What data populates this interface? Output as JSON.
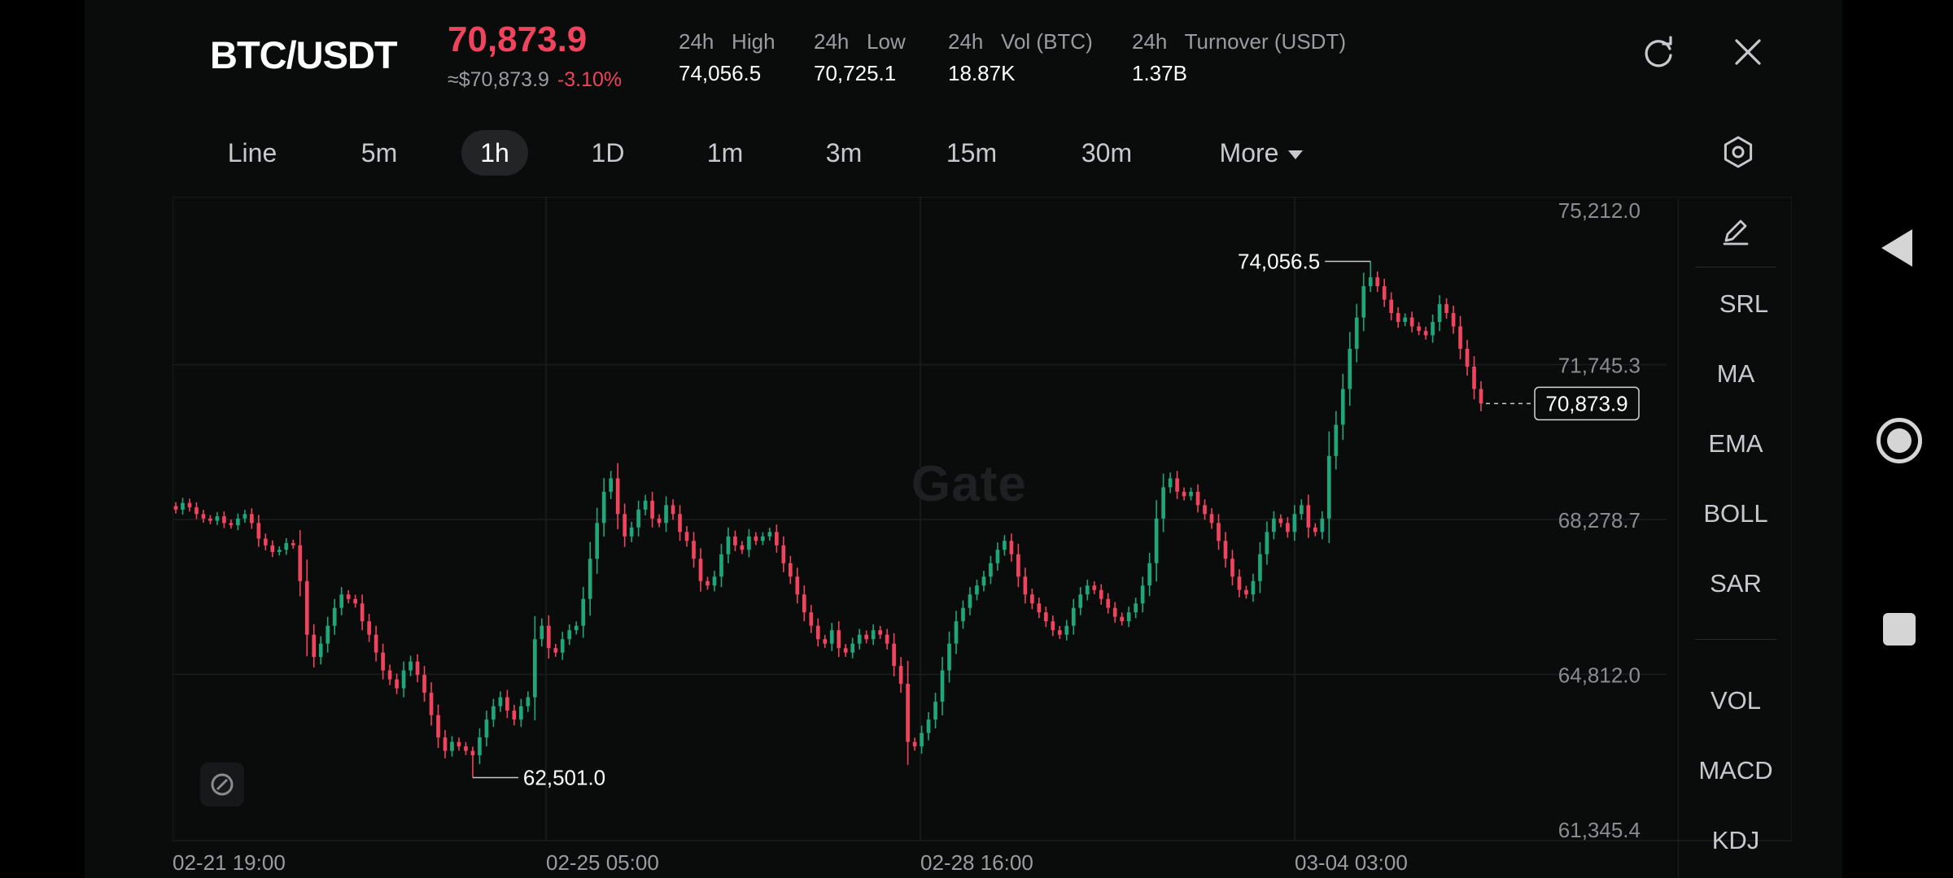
{
  "header": {
    "pair": "BTC/USDT",
    "last_price": "70,873.9",
    "fiat_price": "≈$70,873.9",
    "change": "-3.10%",
    "stats": [
      {
        "label": "24h   High",
        "value": "74,056.5"
      },
      {
        "label": "24h   Low",
        "value": "70,725.1"
      },
      {
        "label": "24h   Vol (BTC)",
        "value": "18.87K"
      },
      {
        "label": "24h   Turnover (USDT)",
        "value": "1.37B"
      }
    ]
  },
  "icons": {
    "refresh": "refresh-icon",
    "close": "close-icon",
    "settings": "hexagon-settings-icon",
    "draw": "pencil-icon",
    "fab": "rotate-icon"
  },
  "tabs": [
    "Line",
    "5m",
    "1h",
    "1D",
    "1m",
    "3m",
    "15m",
    "30m",
    "More"
  ],
  "active_tab": "1h",
  "side_indicators": [
    "SRL",
    "MA",
    "EMA",
    "BOLL",
    "SAR",
    "VOL",
    "MACD",
    "KDJ"
  ],
  "watermark": "Gate",
  "colors": {
    "up": "#1fa67a",
    "down": "#f0445e",
    "background": "#0a0b0b",
    "grid": "#1a1c1e"
  },
  "chart_data": {
    "type": "candlestick",
    "y_ticks": [
      "75,212.0",
      "71,745.3",
      "68,278.7",
      "64,812.0",
      "61,345.4"
    ],
    "ylim": [
      61345.4,
      75212.0
    ],
    "x_ticks": [
      "02-21 19:00",
      "02-25 05:00",
      "02-28 16:00",
      "03-04 03:00"
    ],
    "high_label": "74,056.5",
    "low_label": "62,501.0",
    "last_price_label": "70,873.9",
    "close_series": [
      68500,
      68650,
      68550,
      68400,
      68300,
      68250,
      68350,
      68200,
      68150,
      68300,
      68400,
      68200,
      67850,
      67700,
      67550,
      67600,
      67750,
      67700,
      66900,
      65700,
      65200,
      65500,
      65900,
      66300,
      66600,
      66500,
      66400,
      66000,
      65700,
      65300,
      64900,
      64700,
      64500,
      64900,
      65100,
      64800,
      64400,
      63900,
      63400,
      63100,
      63300,
      63200,
      63100,
      63000,
      63400,
      63800,
      64100,
      64300,
      64000,
      63800,
      64100,
      64300,
      65600,
      65900,
      65400,
      65300,
      65600,
      65800,
      65900,
      66500,
      67400,
      68200,
      68900,
      69200,
      68400,
      67900,
      68100,
      68500,
      68700,
      68300,
      68200,
      68600,
      68400,
      68000,
      67800,
      67400,
      66900,
      66800,
      67000,
      67500,
      67900,
      67700,
      67600,
      67900,
      67800,
      67900,
      68000,
      67700,
      67300,
      67000,
      66600,
      66200,
      65900,
      65600,
      65500,
      65800,
      65400,
      65300,
      65500,
      65700,
      65600,
      65800,
      65700,
      65500,
      65000,
      64600,
      63300,
      63200,
      63500,
      63800,
      64200,
      64900,
      65500,
      66000,
      66300,
      66600,
      66800,
      67000,
      67300,
      67600,
      67800,
      67500,
      67000,
      66600,
      66400,
      66200,
      66000,
      65800,
      65700,
      65900,
      66300,
      66600,
      66800,
      66700,
      66500,
      66300,
      66100,
      66000,
      66200,
      66400,
      66800,
      67300,
      68300,
      69000,
      69200,
      68900,
      68800,
      68900,
      68600,
      68400,
      68200,
      67800,
      67400,
      67000,
      66700,
      66600,
      66900,
      67500,
      68000,
      68300,
      68200,
      68000,
      68400,
      68600,
      68100,
      68000,
      68300,
      69700,
      70400,
      71200,
      72100,
      72800,
      73500,
      73700,
      73500,
      73200,
      72900,
      72700,
      72800,
      72600,
      72500,
      72400,
      72700,
      73100,
      72900,
      72600,
      72100,
      71700,
      71200,
      70873.9
    ]
  }
}
